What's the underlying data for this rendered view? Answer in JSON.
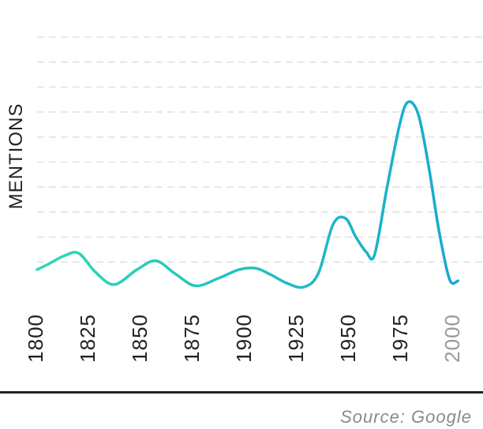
{
  "chart_data": {
    "type": "line",
    "title": "",
    "xlabel": "",
    "ylabel": "MENTIONS",
    "x_ticks": [
      "1800",
      "1825",
      "1850",
      "1875",
      "1900",
      "1925",
      "1950",
      "1975",
      "2000"
    ],
    "xlim": [
      1800,
      2005
    ],
    "ylim": [
      0,
      10
    ],
    "grid": true,
    "gradient": [
      "#2ed8b4",
      "#18a9cf"
    ],
    "tick_colors": {
      "default": "#222222",
      "future": "#9a9a9a"
    },
    "series": [
      {
        "x": [
          1800,
          1805,
          1813,
          1820,
          1828,
          1837,
          1848,
          1857,
          1866,
          1876,
          1887,
          1897,
          1905,
          1912,
          1920,
          1928,
          1935,
          1942,
          1948,
          1953,
          1958,
          1962,
          1968,
          1974,
          1978,
          1983,
          1988,
          1993,
          1998,
          2002
        ],
        "y": [
          0.7,
          0.9,
          1.25,
          1.35,
          0.6,
          0.1,
          0.7,
          1.05,
          0.55,
          0.05,
          0.35,
          0.7,
          0.75,
          0.5,
          0.15,
          0.0,
          0.55,
          2.5,
          2.75,
          2.0,
          1.4,
          1.3,
          4.0,
          6.5,
          7.4,
          6.9,
          4.8,
          2.2,
          0.3,
          0.25
        ]
      }
    ]
  },
  "source": "Source: Google"
}
